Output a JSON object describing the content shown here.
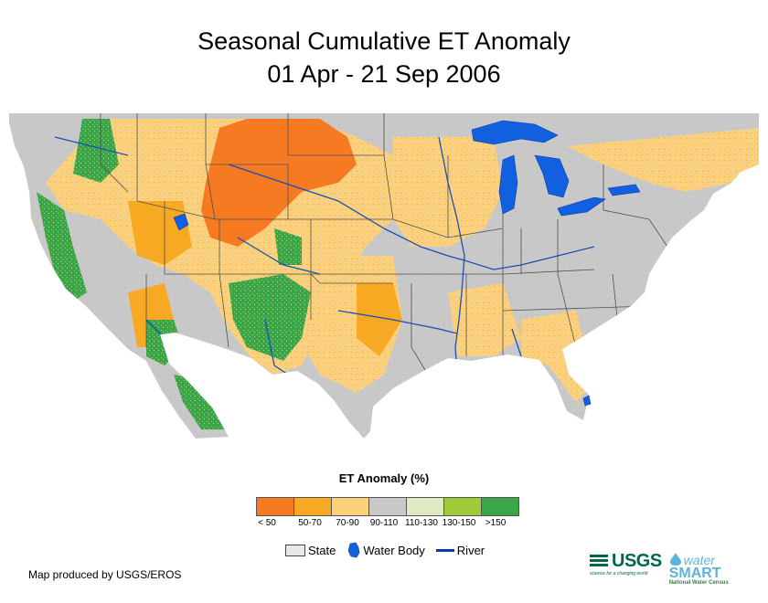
{
  "title": {
    "line1": "Seasonal Cumulative ET Anomaly",
    "line2": "01 Apr - 21 Sep 2006"
  },
  "legend": {
    "title": "ET Anomaly (%)",
    "classes": [
      {
        "label": "< 50",
        "color": "#f57a21"
      },
      {
        "label": "50-70",
        "color": "#f7a924"
      },
      {
        "label": "70-90",
        "color": "#fdd17b"
      },
      {
        "label": "90-110",
        "color": "#c8c8c8"
      },
      {
        "label": "110-130",
        "color": "#deebc2"
      },
      {
        "label": "130-150",
        "color": "#9fcb3b"
      },
      {
        "label": ">150",
        "color": "#3aa648"
      }
    ]
  },
  "map_key": {
    "state": "State",
    "water_body": "Water Body",
    "river": "River"
  },
  "credit": "Map produced by USGS/EROS",
  "logos": {
    "usgs": "USGS",
    "usgs_tagline": "science for a changing world",
    "watersmart_top": "water",
    "watersmart_main": "SMART",
    "watersmart_sub": "National Water Census"
  },
  "colors": {
    "water": "#1060e0",
    "river": "#1a4fb8",
    "state_line": "#505050"
  }
}
